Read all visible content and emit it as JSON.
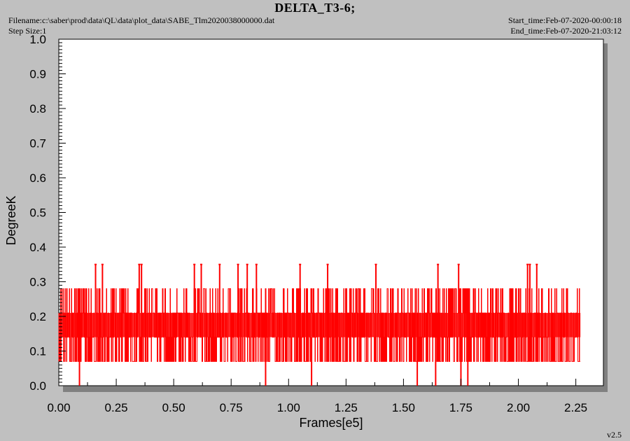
{
  "header": {
    "title": "DELTA_T3-6;",
    "filename": "Filename:c:\\saber\\prod\\data\\QL\\data\\plot_data\\SABE_Tlm2020038000000.dat",
    "step_size": "Step Size:1",
    "start_time": "Start_time:Feb-07-2020-00:00:18",
    "end_time": "End_time:Feb-07-2020-21:03:12"
  },
  "footer": {
    "version": "v2.5"
  },
  "colors": {
    "series": "#ff0000",
    "plot_bg": "#ffffff",
    "page_bg": "#c0c0c0",
    "shadow": "#808080"
  },
  "chart_data": {
    "type": "line",
    "title": "DELTA_T3-6;",
    "xlabel": "Frames[e5]",
    "ylabel": "DegreeK",
    "xlim": [
      0,
      2.37
    ],
    "ylim": [
      0,
      1.0
    ],
    "x_ticks": [
      "0.00",
      "0.25",
      "0.50",
      "0.75",
      "1.00",
      "1.25",
      "1.50",
      "1.75",
      "2.00",
      "2.25"
    ],
    "y_ticks": [
      "0.0",
      "0.1",
      "0.2",
      "0.3",
      "0.4",
      "0.5",
      "0.6",
      "0.7",
      "0.8",
      "0.9",
      "1.0"
    ],
    "grid": false,
    "series": [
      {
        "values_note_levels": [
          0.0,
          0.07,
          0.14,
          0.21,
          0.28,
          0.35
        ],
        "x_start": 0.0,
        "x_end": 2.27,
        "dense_band": [
          0.07,
          0.28
        ],
        "spikes_high": [
          [
            0.16,
            0.35
          ],
          [
            0.19,
            0.35
          ],
          [
            0.35,
            0.35
          ],
          [
            0.36,
            0.35
          ],
          [
            0.59,
            0.35
          ],
          [
            0.62,
            0.35
          ],
          [
            0.7,
            0.35
          ],
          [
            0.78,
            0.35
          ],
          [
            0.82,
            0.35
          ],
          [
            0.86,
            0.35
          ],
          [
            1.05,
            0.35
          ],
          [
            1.17,
            0.35
          ],
          [
            1.38,
            0.35
          ],
          [
            1.65,
            0.35
          ],
          [
            1.74,
            0.35
          ],
          [
            2.04,
            0.35
          ],
          [
            2.05,
            0.35
          ],
          [
            2.08,
            0.35
          ]
        ],
        "spikes_low": [
          [
            0.09,
            0.0
          ],
          [
            0.9,
            0.0
          ],
          [
            1.1,
            0.0
          ],
          [
            1.56,
            0.0
          ],
          [
            1.64,
            0.0
          ],
          [
            1.75,
            0.0
          ],
          [
            1.78,
            0.0
          ]
        ]
      }
    ]
  }
}
